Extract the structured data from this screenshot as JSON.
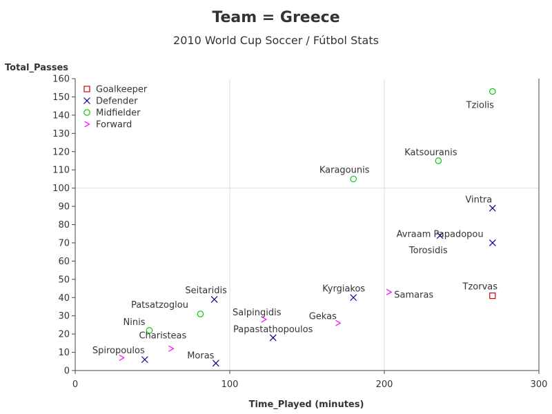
{
  "chart_data": {
    "type": "scatter",
    "title": "Team = Greece",
    "subtitle": "2010 World Cup Soccer / Fútbol Stats",
    "xlabel": "Time_Played (minutes)",
    "ylabel": "Total_Passes",
    "xlim": [
      0,
      300
    ],
    "ylim": [
      0,
      160
    ],
    "x_ticks": [
      0,
      100,
      200,
      300
    ],
    "y_ticks": [
      0,
      10,
      20,
      30,
      40,
      50,
      60,
      70,
      80,
      90,
      100,
      110,
      120,
      130,
      140,
      150,
      160
    ],
    "grid": "reference lines at x=100, x=200 and y=100",
    "legend_position": "top-left inside",
    "series": [
      {
        "name": "Goalkeeper",
        "marker": "square",
        "color": "#cc0000",
        "points": [
          {
            "label": "Tzorvas",
            "x": 270,
            "y": 41
          }
        ]
      },
      {
        "name": "Defender",
        "marker": "x",
        "color": "#00008b",
        "points": [
          {
            "label": "Vintra",
            "x": 270,
            "y": 89
          },
          {
            "label": "Avraam Papadopou",
            "x": 236,
            "y": 74
          },
          {
            "label": "Torosidis",
            "x": 270,
            "y": 70
          },
          {
            "label": "Kyrgiakos",
            "x": 180,
            "y": 40
          },
          {
            "label": "Seitaridis",
            "x": 90,
            "y": 39
          },
          {
            "label": "Papastathopoulos",
            "x": 128,
            "y": 18
          },
          {
            "label": "Spiropoulos",
            "x": 45,
            "y": 6
          },
          {
            "label": "Moras",
            "x": 91,
            "y": 4
          }
        ]
      },
      {
        "name": "Midfielder",
        "marker": "circle",
        "color": "#00cc00",
        "points": [
          {
            "label": "Tziolis",
            "x": 270,
            "y": 153
          },
          {
            "label": "Katsouranis",
            "x": 235,
            "y": 115
          },
          {
            "label": "Karagounis",
            "x": 180,
            "y": 105
          },
          {
            "label": "Patsatzoglou",
            "x": 81,
            "y": 31
          },
          {
            "label": "Ninis",
            "x": 48,
            "y": 22
          }
        ]
      },
      {
        "name": "Forward",
        "marker": "chevron",
        "color": "#ff00ff",
        "points": [
          {
            "label": "Samaras",
            "x": 203,
            "y": 43
          },
          {
            "label": "Salpingidis",
            "x": 122,
            "y": 28
          },
          {
            "label": "Gekas",
            "x": 170,
            "y": 26
          },
          {
            "label": "Charisteas",
            "x": 62,
            "y": 12
          },
          {
            "label": "",
            "x": 30,
            "y": 7
          }
        ]
      }
    ]
  }
}
